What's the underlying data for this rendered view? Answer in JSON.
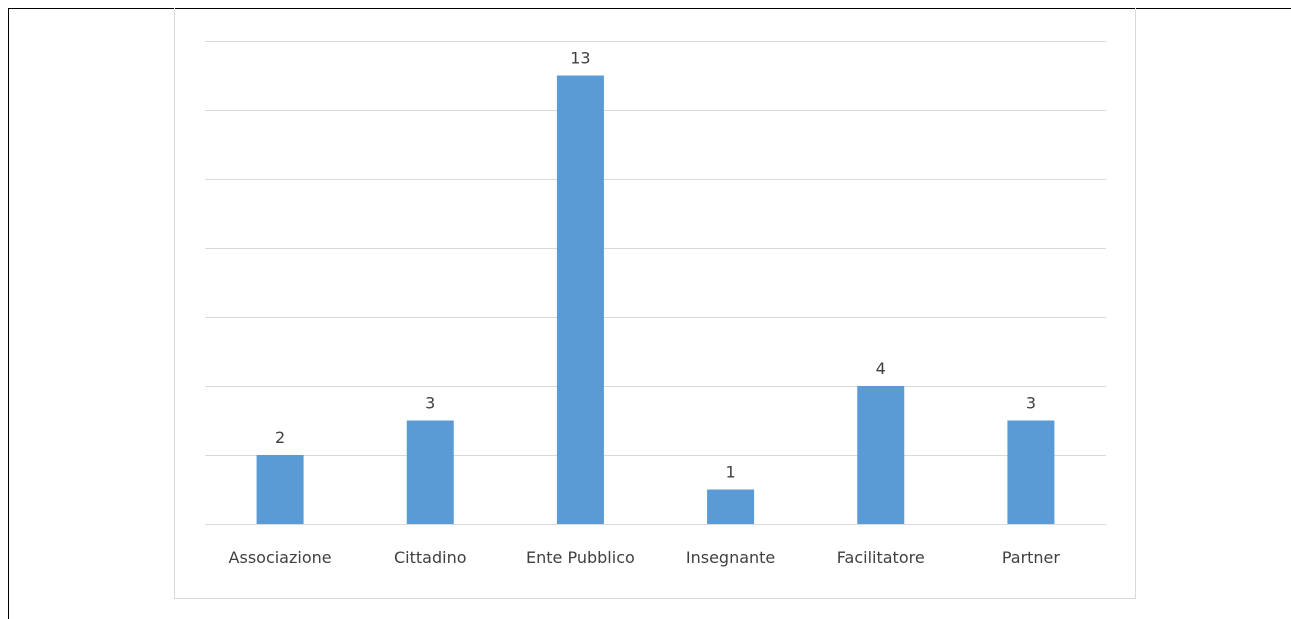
{
  "chart_data": {
    "type": "bar",
    "categories": [
      "Associazione",
      "Cittadino",
      "Ente Pubblico",
      "Insegnante",
      "Facilitatore",
      "Partner"
    ],
    "values": [
      2,
      3,
      13,
      1,
      4,
      3
    ],
    "data_labels": [
      "2",
      "3",
      "13",
      "1",
      "4",
      "3"
    ],
    "title": "",
    "xlabel": "",
    "ylabel": "",
    "ylim": [
      0,
      14
    ],
    "y_gridline_step": 2,
    "grid": true,
    "legend": "none",
    "colors": {
      "bar": "#5b9bd5",
      "gridline": "#d9d9d9",
      "text": "#404040",
      "frame": "#d9d9d9"
    }
  }
}
